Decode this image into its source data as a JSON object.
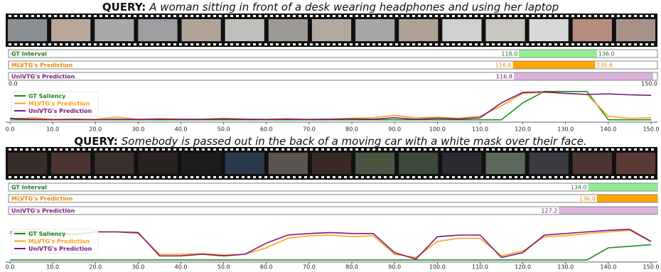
{
  "chart_data": [
    {
      "type": "line",
      "query_label": "QUERY:",
      "query": "A woman sitting in front of a desk wearing headphones and using her laptop",
      "interval_xlim": [
        0,
        150
      ],
      "interval_xticks": [
        {
          "value": 0,
          "label": "0.0"
        },
        {
          "value": 150,
          "label": "150.0"
        }
      ],
      "intervals": [
        {
          "name": "GT Interval",
          "color": "#90ee90",
          "text_color": "#1f7a1f",
          "values": [
            118,
            136
          ],
          "value_labels": [
            "118.0",
            "136.0"
          ]
        },
        {
          "name": "MLVTG's Prediction",
          "color": "#ffa500",
          "text_color": "#e88a00",
          "values": [
            116.6,
            135.6
          ],
          "value_labels": [
            "116.6",
            "135.6"
          ]
        },
        {
          "name": "UniVTG's Prediction",
          "color": "#d9b3d9",
          "text_color": "#7a1f7a",
          "values": [
            116.8,
            149
          ],
          "value_labels": [
            "116.8",
            null
          ]
        }
      ],
      "x": [
        0,
        5,
        10,
        15,
        20,
        25,
        30,
        35,
        40,
        45,
        50,
        55,
        60,
        65,
        70,
        75,
        80,
        85,
        90,
        95,
        100,
        105,
        110,
        115,
        120,
        125,
        130,
        135,
        140,
        145,
        150
      ],
      "xlim": [
        0,
        150
      ],
      "xticks": [
        {
          "value": 0,
          "label": "0.0"
        },
        {
          "value": 10,
          "label": "10.0"
        },
        {
          "value": 20,
          "label": "20.0"
        },
        {
          "value": 30,
          "label": "30.0"
        },
        {
          "value": 40,
          "label": "40.0"
        },
        {
          "value": 50,
          "label": "50.0"
        },
        {
          "value": 60,
          "label": "60.0"
        },
        {
          "value": 70,
          "label": "70.0"
        },
        {
          "value": 80,
          "label": "80.0"
        },
        {
          "value": 90,
          "label": "90.0"
        },
        {
          "value": 100,
          "label": "100.0"
        },
        {
          "value": 110,
          "label": "110.0"
        },
        {
          "value": 120,
          "label": "120.0"
        },
        {
          "value": 130,
          "label": "130.0"
        },
        {
          "value": 140,
          "label": "140.0"
        },
        {
          "value": 150,
          "label": "150.0"
        }
      ],
      "ylim": [
        0,
        1
      ],
      "series": [
        {
          "name": "GT Saliency",
          "color": "#1a8c1a",
          "values": [
            0.03,
            0.03,
            0.03,
            0.03,
            0.03,
            0.03,
            0.03,
            0.03,
            0.03,
            0.03,
            0.03,
            0.03,
            0.03,
            0.03,
            0.03,
            0.03,
            0.03,
            0.03,
            0.03,
            0.03,
            0.03,
            0.03,
            0.03,
            0.03,
            0.6,
            0.98,
            0.98,
            0.98,
            0.03,
            0.03,
            0.03
          ]
        },
        {
          "name": "MLVTG's Prediction",
          "color": "#ff9f1c",
          "values": [
            0.05,
            0.1,
            0.05,
            0.06,
            0.05,
            0.12,
            0.05,
            0.07,
            0.06,
            0.05,
            0.08,
            0.06,
            0.05,
            0.07,
            0.05,
            0.06,
            0.08,
            0.1,
            0.18,
            0.1,
            0.12,
            0.08,
            0.15,
            0.5,
            0.92,
            0.95,
            0.92,
            0.88,
            0.15,
            0.08,
            0.1
          ]
        },
        {
          "name": "UniVTG's Prediction",
          "color": "#7a1a7a",
          "values": [
            0.08,
            0.05,
            0.03,
            0.04,
            0.03,
            0.05,
            0.04,
            0.05,
            0.04,
            0.05,
            0.06,
            0.05,
            0.04,
            0.05,
            0.04,
            0.05,
            0.06,
            0.05,
            0.1,
            0.05,
            0.08,
            0.06,
            0.1,
            0.6,
            0.95,
            0.97,
            0.92,
            0.88,
            0.9,
            0.87,
            0.85
          ]
        }
      ]
    },
    {
      "type": "line",
      "query_label": "QUERY:",
      "query": "Somebody is passed out in the back of a moving car with a white mask over their face.",
      "interval_xlim": [
        0,
        150
      ],
      "intervals": [
        {
          "name": "GT Interval",
          "color": "#90ee90",
          "text_color": "#1f7a1f",
          "values": [
            134,
            150
          ],
          "value_labels": [
            "134.0",
            null
          ]
        },
        {
          "name": "MLVTG's Prediction",
          "color": "#ffa500",
          "text_color": "#e88a00",
          "values": [
            136,
            150
          ],
          "value_labels": [
            "136.0",
            null
          ]
        },
        {
          "name": "UniVTG's Prediction",
          "color": "#d9b3d9",
          "text_color": "#7a1f7a",
          "values": [
            127.2,
            150
          ],
          "value_labels": [
            "127.2",
            null
          ]
        }
      ],
      "x": [
        0,
        5,
        10,
        15,
        20,
        25,
        30,
        35,
        40,
        45,
        50,
        55,
        60,
        65,
        70,
        75,
        80,
        85,
        90,
        95,
        100,
        105,
        110,
        115,
        120,
        125,
        130,
        135,
        140,
        145,
        150
      ],
      "xlim": [
        0,
        150
      ],
      "xticks": [
        {
          "value": 0,
          "label": "0.0"
        },
        {
          "value": 10,
          "label": "10.0"
        },
        {
          "value": 20,
          "label": "20.0"
        },
        {
          "value": 30,
          "label": "30.0"
        },
        {
          "value": 40,
          "label": "40.0"
        },
        {
          "value": 50,
          "label": "50.0"
        },
        {
          "value": 60,
          "label": "60.0"
        },
        {
          "value": 70,
          "label": "70.0"
        },
        {
          "value": 80,
          "label": "80.0"
        },
        {
          "value": 90,
          "label": "90.0"
        },
        {
          "value": 100,
          "label": "100.0"
        },
        {
          "value": 110,
          "label": "110.0"
        },
        {
          "value": 120,
          "label": "120.0"
        },
        {
          "value": 130,
          "label": "130.0"
        },
        {
          "value": 140,
          "label": "140.0"
        },
        {
          "value": 150,
          "label": "150.0"
        }
      ],
      "ylim": [
        0,
        1
      ],
      "series": [
        {
          "name": "GT Saliency",
          "color": "#1a8c1a",
          "values": [
            0.02,
            0.02,
            0.02,
            0.02,
            0.02,
            0.02,
            0.02,
            0.02,
            0.02,
            0.02,
            0.02,
            0.02,
            0.02,
            0.02,
            0.02,
            0.02,
            0.02,
            0.02,
            0.02,
            0.02,
            0.02,
            0.02,
            0.02,
            0.02,
            0.02,
            0.02,
            0.02,
            0.02,
            0.4,
            0.45,
            0.5
          ]
        },
        {
          "name": "MLVTG's Prediction",
          "color": "#ff9f1c",
          "values": [
            0.85,
            0.85,
            0.82,
            0.8,
            0.9,
            0.9,
            0.85,
            0.2,
            0.2,
            0.22,
            0.18,
            0.2,
            0.4,
            0.7,
            0.78,
            0.8,
            0.75,
            0.78,
            0.2,
            0.1,
            0.6,
            0.7,
            0.7,
            0.15,
            0.3,
            0.75,
            0.78,
            0.85,
            0.9,
            0.95,
            0.6
          ]
        },
        {
          "name": "UniVTG's Prediction",
          "color": "#7a1a7a",
          "values": [
            0.9,
            0.9,
            0.85,
            0.82,
            0.9,
            0.9,
            0.88,
            0.15,
            0.15,
            0.2,
            0.15,
            0.2,
            0.55,
            0.8,
            0.85,
            0.88,
            0.85,
            0.85,
            0.25,
            0.05,
            0.75,
            0.8,
            0.8,
            0.1,
            0.25,
            0.8,
            0.85,
            0.9,
            0.95,
            0.98,
            0.6
          ]
        }
      ]
    }
  ]
}
